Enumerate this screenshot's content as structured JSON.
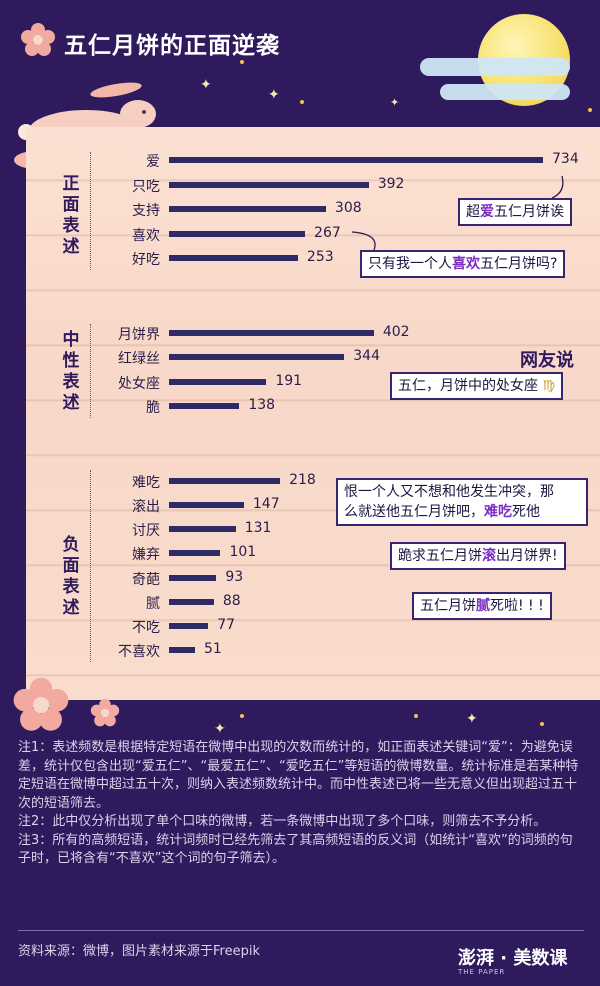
{
  "title": "五仁月饼的正面逆袭",
  "chart_data": {
    "type": "bar",
    "orientation": "horizontal",
    "groups": [
      {
        "label": "正面表述",
        "categories": [
          "爱",
          "只吃",
          "支持",
          "喜欢",
          "好吃"
        ],
        "values": [
          734,
          392,
          308,
          267,
          253
        ]
      },
      {
        "label": "中性表述",
        "categories": [
          "月饼界",
          "红绿丝",
          "处女座",
          "脆"
        ],
        "values": [
          402,
          344,
          191,
          138
        ]
      },
      {
        "label": "负面表述",
        "categories": [
          "难吃",
          "滚出",
          "讨厌",
          "嫌弃",
          "奇葩",
          "腻",
          "不吃",
          "不喜欢"
        ],
        "values": [
          218,
          147,
          131,
          101,
          93,
          88,
          77,
          51
        ]
      }
    ],
    "xlim": [
      0,
      734
    ],
    "grid": false,
    "annotations": {
      "love": {
        "pre": "超",
        "hl": "爱",
        "post": "五仁月饼诶"
      },
      "like": {
        "pre": "只有我一个人",
        "hl": "喜欢",
        "post": "五仁月饼吗?"
      },
      "netizen_heading": "网友说",
      "virgo": "五仁，月饼中的处女座",
      "bad_line1": "恨一个人又不想和他发生冲突，那",
      "bad_line2_pre": "么就送他五仁月饼吧，",
      "bad_line2_hl": "难吃",
      "bad_line2_post": "死他",
      "roll": {
        "pre": "跪求五仁月饼",
        "hl": "滚",
        "post": "出月饼界!"
      },
      "greasy": {
        "pre": "五仁月饼",
        "hl": "腻",
        "post": "死啦! ! !"
      }
    }
  },
  "notes": [
    "注1：表述频数是根据特定短语在微博中出现的次数而统计的，如正面表述关键词“爱”：为避免误差，统计仅包含出现“爱五仁”、“最爱五仁”、“爱吃五仁”等短语的微博数量。统计标准是若某种特定短语在微博中超过五十次，则纳入表述频数统计中。而中性表述已将一些无意义但出现超过五十次的短语筛去。",
    "注2：此中仅分析出现了单个口味的微博，若一条微博中出现了多个口味，则筛去不予分析。",
    "注3：所有的高频短语，统计词频时已经先筛去了其高频短语的反义词（如统计“喜欢”的词频的句子时，已将含有“不喜欢”这个词的句子筛去）。"
  ],
  "source": "资料来源：微博，图片素材来源于Freepik",
  "brand": {
    "name": "澎湃 · 美数课",
    "sub": "THE PAPER"
  },
  "colors": {
    "background": "#2e1a5c",
    "bar": "#2e2a66",
    "board": "#f9dccc",
    "highlight": "#7a2ec0"
  }
}
